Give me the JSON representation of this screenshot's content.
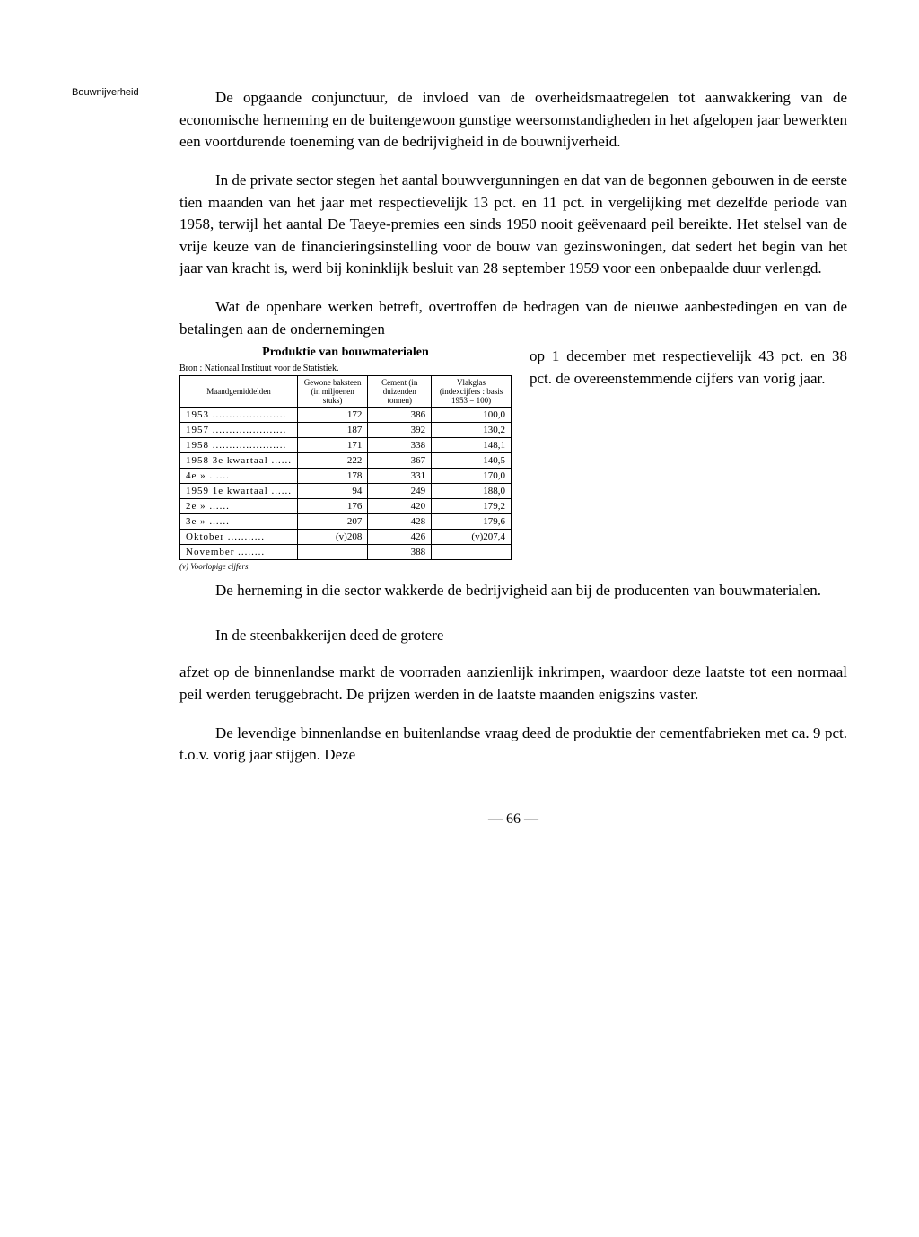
{
  "margin_note": "Bouwnijverheid",
  "paragraph1": "De opgaande conjunctuur, de invloed van de overheidsmaatregelen tot aanwakkering van de economische herneming en de buitengewoon gunstige weersomstandigheden in het afgelopen jaar bewerkten een voortdurende toeneming van de bedrijvigheid in de bouwnijverheid.",
  "paragraph2": "In de private sector stegen het aantal bouwvergunningen en dat van de begonnen gebouwen in de eerste tien maanden van het jaar met respectievelijk 13 pct. en 11 pct. in vergelijking met dezelfde periode van 1958, terwijl het aantal De Taeye-premies een sinds 1950 nooit geëvenaard peil bereikte. Het stelsel van de vrije keuze van de financieringsinstelling voor de bouw van gezinswoningen, dat sedert het begin van het jaar van kracht is, werd bij koninklijk besluit van 28 september 1959 voor een onbepaalde duur verlengd.",
  "paragraph3_intro": "Wat de openbare werken betreft, overtroffen de bedragen van de nieuwe aanbestedingen en van de betalingen aan de ondernemingen",
  "right_flow_1": "op 1 december met respectievelijk 43 pct. en 38 pct. de overeenstemmende cijfers van vorig jaar.",
  "right_flow_2": "De herneming in die sector wakkerde de bedrijvigheid aan bij de producenten van bouwmaterialen.",
  "right_flow_3": "In de steenbakkerijen deed de grotere",
  "paragraph_after": "afzet op de binnenlandse markt de voorraden aanzienlijk inkrimpen, waardoor deze laatste tot een normaal peil werden teruggebracht. De prijzen werden in de laatste maanden enigszins vaster.",
  "paragraph_last": "De levendige binnenlandse en buitenlandse vraag deed de produktie der cementfabrieken met ca. 9 pct. t.o.v. vorig jaar stijgen. Deze",
  "table": {
    "title": "Produktie van bouwmaterialen",
    "source": "Bron : Nationaal Instituut voor de Statistiek.",
    "columns": [
      "Maandgemiddelden",
      "Gewone baksteen (in miljoenen stuks)",
      "Cement (in duizenden tonnen)",
      "Vlakglas (indexcijfers : basis 1953 = 100)"
    ],
    "rows": [
      {
        "label": "1953 ......................",
        "c1": "172",
        "c2": "386",
        "c3": "100,0"
      },
      {
        "label": "1957 ......................",
        "c1": "187",
        "c2": "392",
        "c3": "130,2"
      },
      {
        "label": "1958 ......................",
        "c1": "171",
        "c2": "338",
        "c3": "148,1"
      },
      {
        "label": "1958 3e kwartaal ......",
        "c1": "222",
        "c2": "367",
        "c3": "140,5"
      },
      {
        "label": "        4e      »        ......",
        "c1": "178",
        "c2": "331",
        "c3": "170,0"
      },
      {
        "label": "1959 1e kwartaal ......",
        "c1": "94",
        "c2": "249",
        "c3": "188,0"
      },
      {
        "label": "        2e      »        ......",
        "c1": "176",
        "c2": "420",
        "c3": "179,2"
      },
      {
        "label": "        3e      »        ......",
        "c1": "207",
        "c2": "428",
        "c3": "179,6"
      },
      {
        "label": "        Oktober  ...........",
        "c1": "(v)208",
        "c2": "426",
        "c3": "(v)207,4"
      },
      {
        "label": "        November ........",
        "c1": "",
        "c2": "388",
        "c3": ""
      }
    ],
    "footnote": "(v) Voorlopige cijfers."
  },
  "page_number": "— 66 —"
}
